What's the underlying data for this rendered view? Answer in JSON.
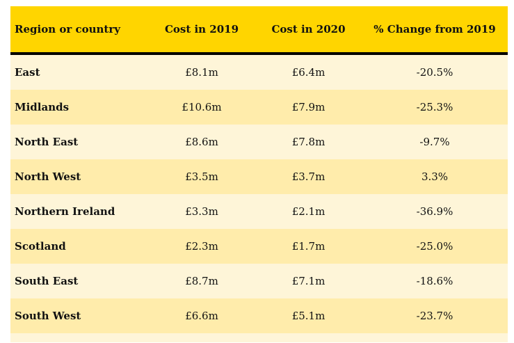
{
  "table": {
    "headers": [
      "Region or country",
      "Cost in 2019",
      "Cost in 2020",
      "% Change from 2019"
    ],
    "rows": [
      [
        "East",
        "£8.1m",
        "£6.4m",
        "-20.5%"
      ],
      [
        "Midlands",
        "£10.6m",
        "£7.9m",
        "-25.3%"
      ],
      [
        "North East",
        "£8.6m",
        "£7.8m",
        "-9.7%"
      ],
      [
        "North West",
        "£3.5m",
        "£3.7m",
        "3.3%"
      ],
      [
        "Northern Ireland",
        "£3.3m",
        "£2.1m",
        "-36.9%"
      ],
      [
        "Scotland",
        "£2.3m",
        "£1.7m",
        "-25.0%"
      ],
      [
        "South East",
        "£8.7m",
        "£7.1m",
        "-18.6%"
      ],
      [
        "South West",
        "£6.6m",
        "£5.1m",
        "-23.7%"
      ]
    ]
  },
  "colors": {
    "header": "#FFD500",
    "row_light": "#FEF5D8",
    "row_dark": "#FFECAB",
    "header_rule": "#000000"
  }
}
